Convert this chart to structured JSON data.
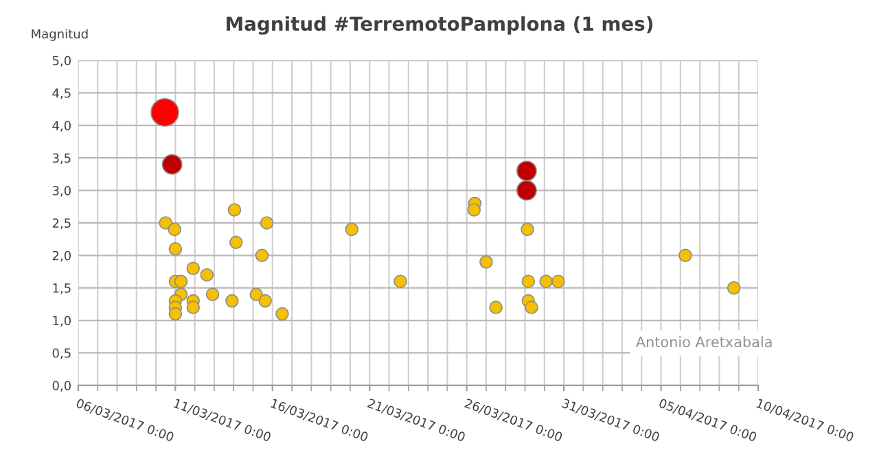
{
  "chart_data": {
    "type": "bubble",
    "title": "Magnitud #TerremotoPamplona (1 mes)",
    "ylabel": "Magnitud",
    "annotations": [
      "Antonio Aretxabala"
    ],
    "series": [
      {
        "color": "#f5c000",
        "x": [
          "2017-03-10T12:00",
          "2017-03-10T23:00",
          "2017-03-11T00:00",
          "2017-03-11T00:00",
          "2017-03-11T07:00",
          "2017-03-11T07:00",
          "2017-03-11T00:00",
          "2017-03-11T00:00",
          "2017-03-11T00:00",
          "2017-03-11T22:00",
          "2017-03-11T22:00",
          "2017-03-11T22:00",
          "2017-03-12T15:00",
          "2017-03-12T22:00",
          "2017-03-14T01:00",
          "2017-03-14T03:00",
          "2017-03-13T22:00",
          "2017-03-15T17:00",
          "2017-03-15T11:00",
          "2017-03-15T04:00",
          "2017-03-15T15:00",
          "2017-03-16T12:00",
          "2017-03-20T02:00",
          "2017-03-22T14:00",
          "2017-03-26T10:00",
          "2017-03-26T09:00",
          "2017-03-27T00:00",
          "2017-03-27T12:00",
          "2017-03-29T03:00",
          "2017-03-29T04:00",
          "2017-03-29T04:00",
          "2017-03-29T08:00",
          "2017-03-30T02:00",
          "2017-03-30T17:00",
          "2017-04-06T06:00",
          "2017-04-08T18:00"
        ],
        "values": [
          2.5,
          2.4,
          2.1,
          1.6,
          1.6,
          1.4,
          1.3,
          1.2,
          1.1,
          1.8,
          1.3,
          1.2,
          1.7,
          1.4,
          2.7,
          2.2,
          1.3,
          2.5,
          2.0,
          1.4,
          1.3,
          1.1,
          2.4,
          1.6,
          2.8,
          2.7,
          1.9,
          1.2,
          2.4,
          1.6,
          1.3,
          1.2,
          1.6,
          1.6,
          2.0,
          1.5
        ],
        "sizes": [
          0.2,
          0.2,
          0.2,
          0.2,
          0.2,
          0.2,
          0.2,
          0.2,
          0.2,
          0.2,
          0.2,
          0.2,
          0.2,
          0.2,
          0.2,
          0.2,
          0.2,
          0.2,
          0.2,
          0.2,
          0.2,
          0.2,
          0.2,
          0.2,
          0.2,
          0.2,
          0.2,
          0.2,
          0.2,
          0.2,
          0.2,
          0.2,
          0.2,
          0.2,
          0.2,
          0.2
        ]
      },
      {
        "color": "#c00000",
        "x": [
          "2017-03-10T20:00",
          "2017-03-29T02:00",
          "2017-03-29T02:00"
        ],
        "values": [
          3.4,
          3.3,
          3.0
        ],
        "sizes": [
          0.5,
          0.5,
          0.5
        ]
      },
      {
        "color": "#ff0000",
        "x": [
          "2017-03-10T11:00"
        ],
        "values": [
          4.2
        ],
        "sizes": [
          1
        ]
      }
    ],
    "xlim": [
      "2017-03-06",
      "2017-04-10"
    ],
    "xticks": [
      {
        "value": "2017-03-06",
        "label": "06/03/2017 0:00"
      },
      {
        "value": "2017-03-11",
        "label": "11/03/2017 0:00"
      },
      {
        "value": "2017-03-16",
        "label": "16/03/2017 0:00"
      },
      {
        "value": "2017-03-21",
        "label": "21/03/2017 0:00"
      },
      {
        "value": "2017-03-26",
        "label": "26/03/2017 0:00"
      },
      {
        "value": "2017-03-31",
        "label": "31/03/2017 0:00"
      },
      {
        "value": "2017-04-05",
        "label": "05/04/2017 0:00"
      },
      {
        "value": "2017-04-10",
        "label": "10/04/2017 0:00"
      }
    ],
    "ylim": [
      0,
      5
    ],
    "yticks": [
      {
        "value": 0,
        "label": "0,0"
      },
      {
        "value": 0.5,
        "label": "0,5"
      },
      {
        "value": 1,
        "label": "1,0"
      },
      {
        "value": 1.5,
        "label": "1,5"
      },
      {
        "value": 2,
        "label": "2,0"
      },
      {
        "value": 2.5,
        "label": "2,5"
      },
      {
        "value": 3,
        "label": "3,0"
      },
      {
        "value": 3.5,
        "label": "3,5"
      },
      {
        "value": 4,
        "label": "4,0"
      },
      {
        "value": 4.5,
        "label": "4,5"
      },
      {
        "value": 5,
        "label": "5,0"
      }
    ],
    "grid": true,
    "marker": "circle"
  }
}
